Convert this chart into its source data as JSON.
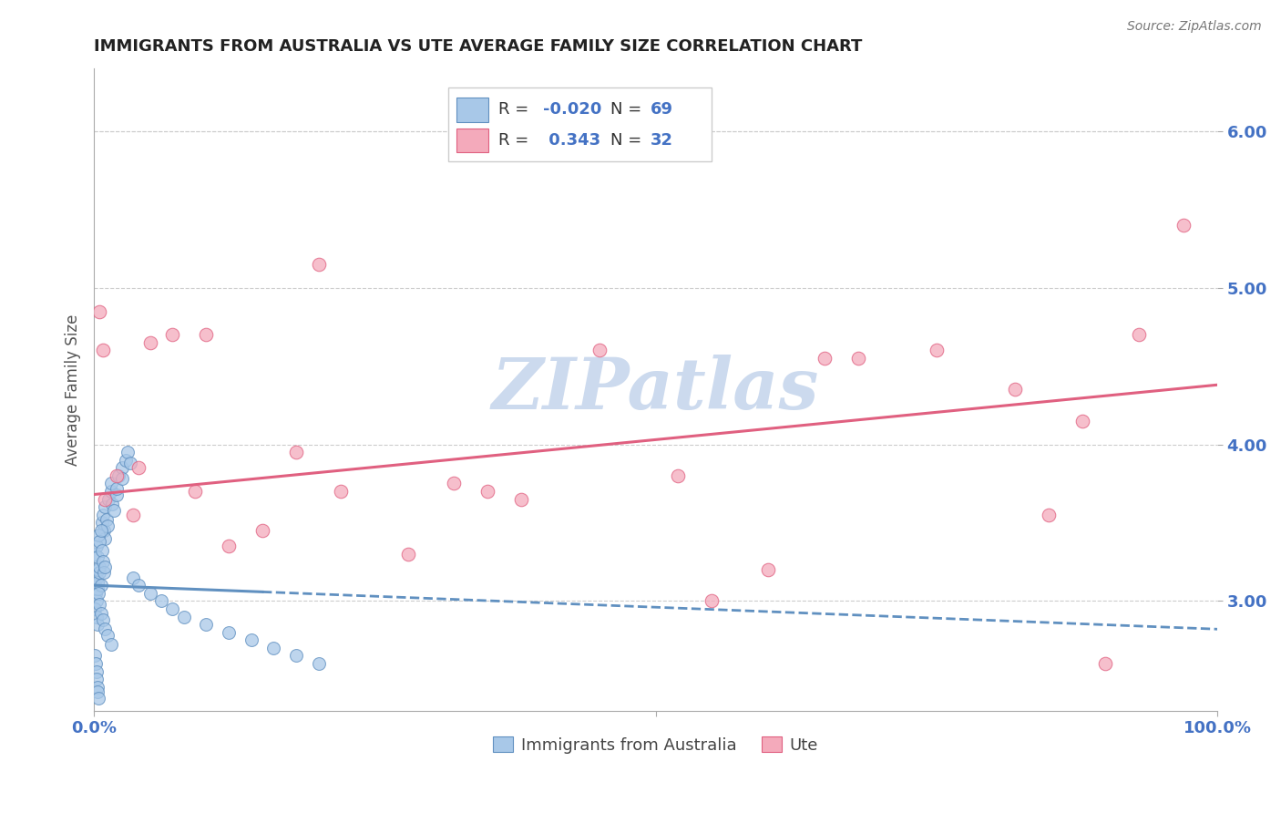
{
  "title": "IMMIGRANTS FROM AUSTRALIA VS UTE AVERAGE FAMILY SIZE CORRELATION CHART",
  "source": "Source: ZipAtlas.com",
  "ylabel": "Average Family Size",
  "xlim": [
    0,
    100
  ],
  "ylim": [
    2.3,
    6.4
  ],
  "yticks": [
    3.0,
    4.0,
    5.0,
    6.0
  ],
  "legend_labels": [
    "Immigrants from Australia",
    "Ute"
  ],
  "blue_color": "#a8c8e8",
  "pink_color": "#f4aabb",
  "blue_line_color": "#6090c0",
  "pink_line_color": "#e06080",
  "legend_text_color": "#4472c4",
  "R_blue": -0.02,
  "N_blue": 69,
  "R_pink": 0.343,
  "N_pink": 32,
  "blue_scatter_x": [
    0.1,
    0.15,
    0.2,
    0.25,
    0.3,
    0.35,
    0.4,
    0.5,
    0.5,
    0.6,
    0.7,
    0.8,
    0.9,
    1.0,
    1.0,
    1.1,
    1.2,
    1.3,
    1.5,
    1.5,
    1.6,
    1.8,
    2.0,
    2.0,
    2.2,
    2.5,
    2.5,
    2.8,
    3.0,
    3.2,
    0.1,
    0.2,
    0.3,
    0.4,
    0.5,
    0.6,
    0.7,
    0.8,
    0.9,
    1.0,
    0.1,
    0.2,
    0.3,
    0.4,
    0.5,
    0.6,
    0.8,
    1.0,
    1.2,
    1.5,
    0.1,
    0.15,
    0.2,
    0.25,
    0.3,
    0.35,
    0.4,
    3.5,
    4.0,
    5.0,
    6.0,
    7.0,
    8.0,
    10.0,
    12.0,
    14.0,
    16.0,
    18.0,
    20.0
  ],
  "blue_scatter_y": [
    3.1,
    3.05,
    3.0,
    3.15,
    3.08,
    3.12,
    3.2,
    3.18,
    3.22,
    3.1,
    3.5,
    3.55,
    3.45,
    3.6,
    3.4,
    3.52,
    3.48,
    3.65,
    3.7,
    3.75,
    3.62,
    3.58,
    3.68,
    3.72,
    3.8,
    3.85,
    3.78,
    3.9,
    3.95,
    3.88,
    3.3,
    3.35,
    3.28,
    3.42,
    3.38,
    3.45,
    3.32,
    3.25,
    3.18,
    3.22,
    2.95,
    2.9,
    2.85,
    3.05,
    2.98,
    2.92,
    2.88,
    2.82,
    2.78,
    2.72,
    2.65,
    2.6,
    2.55,
    2.5,
    2.45,
    2.42,
    2.38,
    3.15,
    3.1,
    3.05,
    3.0,
    2.95,
    2.9,
    2.85,
    2.8,
    2.75,
    2.7,
    2.65,
    2.6
  ],
  "pink_scatter_x": [
    0.5,
    1.0,
    2.0,
    3.5,
    5.0,
    7.0,
    9.0,
    12.0,
    15.0,
    18.0,
    22.0,
    28.0,
    32.0,
    38.0,
    45.0,
    52.0,
    60.0,
    68.0,
    75.0,
    82.0,
    88.0,
    93.0,
    97.0,
    0.8,
    4.0,
    10.0,
    20.0,
    35.0,
    55.0,
    85.0,
    65.0,
    90.0
  ],
  "pink_scatter_y": [
    4.85,
    3.65,
    3.8,
    3.55,
    4.65,
    4.7,
    3.7,
    3.35,
    3.45,
    3.95,
    3.7,
    3.3,
    3.75,
    3.65,
    4.6,
    3.8,
    3.2,
    4.55,
    4.6,
    4.35,
    4.15,
    4.7,
    5.4,
    4.6,
    3.85,
    4.7,
    5.15,
    3.7,
    3.0,
    3.55,
    4.55,
    2.6
  ],
  "watermark": "ZIPatlas",
  "watermark_color": "#ccdaee",
  "background_color": "#ffffff",
  "grid_color": "#cccccc",
  "tick_color": "#4472c4",
  "title_color": "#222222"
}
